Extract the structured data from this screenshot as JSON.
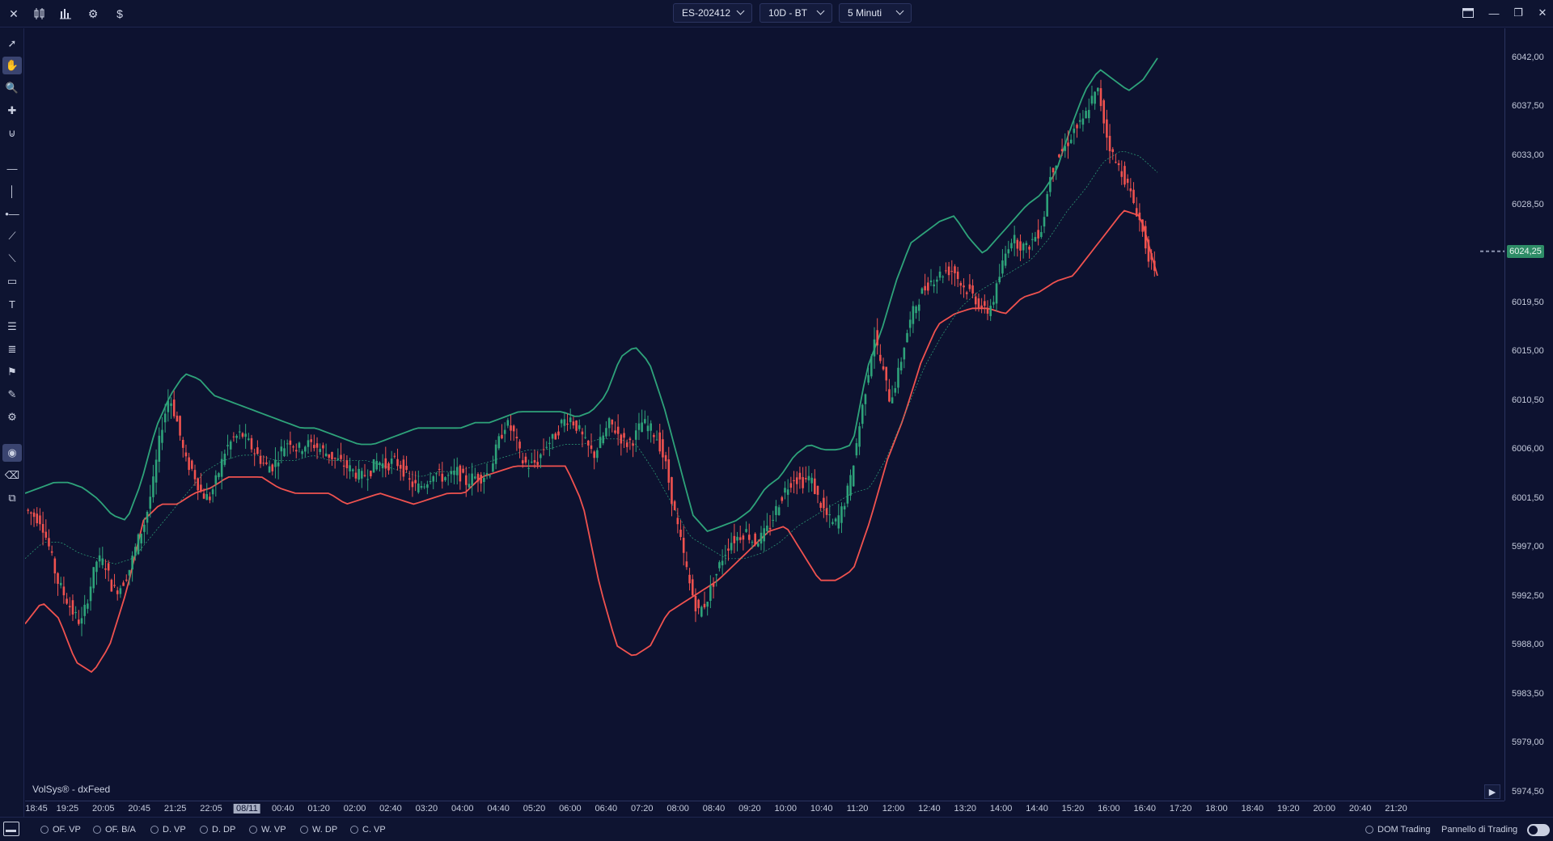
{
  "toolbar": {
    "icons": [
      "close-icon",
      "candles-compare-icon",
      "bar-chart-icon",
      "gear-icon",
      "dollar-icon"
    ],
    "symbol": "ES-202412",
    "range": "10D - BT",
    "timeframe": "5 Minuti"
  },
  "window_controls": [
    "layout-icon",
    "minimize-icon",
    "restore-icon",
    "close-icon"
  ],
  "left_tools": [
    "cursor",
    "hand",
    "zoom",
    "crosshair",
    "magnet",
    "horizontal-line",
    "vertical-line",
    "ray",
    "trend-line",
    "fib",
    "rectangle",
    "text",
    "list-lines",
    "list-lines-2",
    "flag",
    "note",
    "settings-tool",
    "eye",
    "eraser",
    "layer"
  ],
  "chart": {
    "source": "VolSys® - dxFeed",
    "price_labels": [
      "6042,00",
      "6037,50",
      "6033,00",
      "6028,50",
      "6019,50",
      "6015,00",
      "6010,50",
      "6006,00",
      "6001,50",
      "5997,00",
      "5992,50",
      "5988,00",
      "5983,50",
      "5979,00",
      "5974,50"
    ],
    "current_price": "6024,25",
    "time_labels": [
      "18:45",
      "19:25",
      "20:05",
      "20:45",
      "21:25",
      "22:05",
      "08/11",
      "00:40",
      "01:20",
      "02:00",
      "02:40",
      "03:20",
      "04:00",
      "04:40",
      "05:20",
      "06:00",
      "06:40",
      "07:20",
      "08:00",
      "08:40",
      "09:20",
      "10:00",
      "10:40",
      "11:20",
      "12:00",
      "12:40",
      "13:20",
      "14:00",
      "14:40",
      "15:20",
      "16:00",
      "16:40",
      "17:20",
      "18:00",
      "18:40",
      "19:20",
      "20:00",
      "20:40",
      "21:20"
    ],
    "highlighted_time": "08/11"
  },
  "chart_data": {
    "type": "candlestick",
    "ylim": [
      5974.5,
      6044.0
    ],
    "price_path": [
      6000.5,
      6000.0,
      5999.5,
      5997.0,
      5994.0,
      5992.5,
      5991.0,
      5990.0,
      5993.0,
      5996.0,
      5995.5,
      5993.0,
      5993.5,
      5995.0,
      5997.5,
      5999.5,
      6003.0,
      6008.0,
      6011.0,
      6008.5,
      6005.0,
      6004.0,
      6002.0,
      6001.5,
      6003.5,
      6006.0,
      6007.0,
      6007.5,
      6006.5,
      6005.5,
      6004.5,
      6004.5,
      6006.0,
      6007.0,
      6006.0,
      6006.5,
      6006.5,
      6006.0,
      6005.5,
      6005.0,
      6004.5,
      6004.0,
      6003.5,
      6004.0,
      6005.0,
      6004.5,
      6005.0,
      6004.5,
      6003.0,
      6002.5,
      6003.0,
      6004.0,
      6003.5,
      6003.5,
      6004.0,
      6003.0,
      6003.5,
      6003.5,
      6004.0,
      6006.5,
      6008.5,
      6007.5,
      6005.0,
      6004.5,
      6005.0,
      6006.5,
      6007.0,
      6008.5,
      6009.0,
      6008.0,
      6006.5,
      6005.5,
      6007.0,
      6008.5,
      6007.5,
      6006.5,
      6007.0,
      6008.5,
      6008.0,
      6007.0,
      6004.5,
      6000.5,
      5997.0,
      5993.5,
      5991.0,
      5992.0,
      5994.0,
      5996.0,
      5997.5,
      5998.0,
      5998.5,
      5997.5,
      5998.0,
      5999.0,
      6001.0,
      6002.5,
      6003.5,
      6003.0,
      6003.5,
      6001.5,
      6000.0,
      5999.0,
      6000.5,
      6003.0,
      6007.5,
      6012.0,
      6016.5,
      6013.5,
      6010.5,
      6013.0,
      6016.5,
      6019.0,
      6020.5,
      6021.5,
      6022.0,
      6022.5,
      6022.5,
      6021.0,
      6020.5,
      6019.5,
      6018.5,
      6020.0,
      6023.0,
      6025.5,
      6025.0,
      6024.5,
      6025.5,
      6026.5,
      6031.5,
      6033.0,
      6034.0,
      6035.5,
      6036.0,
      6038.0,
      6039.0,
      6035.0,
      6032.5,
      6031.5,
      6029.5,
      6027.5,
      6024.5,
      6022.0
    ],
    "upper_band_path": [
      6002,
      6002.5,
      6003,
      6003,
      6002.5,
      6001.5,
      6000,
      5999.5,
      6003,
      6008,
      6011,
      6013,
      6012.5,
      6011,
      6010.5,
      6010,
      6009.5,
      6009,
      6008.5,
      6008,
      6008,
      6007.5,
      6007,
      6006.5,
      6006.5,
      6007,
      6007.5,
      6008,
      6008,
      6008,
      6008,
      6008.5,
      6008.5,
      6009,
      6009.5,
      6009.5,
      6009.5,
      6009.5,
      6009,
      6009.5,
      6011,
      6014.5,
      6015.5,
      6014,
      6010,
      6005,
      6000,
      5998.5,
      5999,
      5999.5,
      6000.5,
      6002.5,
      6003.5,
      6005.5,
      6006.5,
      6006,
      6006,
      6006.5,
      6013.5,
      6017,
      6021.5,
      6025,
      6026,
      6027,
      6027.5,
      6025.5,
      6024,
      6025.5,
      6027,
      6028.5,
      6029.5,
      6031.5,
      6035.5,
      6039,
      6041,
      6040,
      6039,
      6040,
      6042
    ],
    "lower_band_path": [
      5990,
      5992,
      5990.5,
      5986.5,
      5985.5,
      5988,
      5993,
      5999.5,
      6001,
      6001,
      6002,
      6002.5,
      6003.5,
      6003.5,
      6003.5,
      6002.5,
      6002,
      6002,
      6002,
      6001,
      6001.5,
      6002,
      6001.5,
      6001,
      6001.5,
      6002,
      6002,
      6003.5,
      6004,
      6004.5,
      6004.5,
      6004.5,
      6004.5,
      6001,
      5993.5,
      5988,
      5987,
      5988,
      5991,
      5992,
      5993,
      5994,
      5995.5,
      5997,
      5998.5,
      5999,
      5996.5,
      5994,
      5994,
      5995,
      5999.5,
      6005,
      6009,
      6014,
      6017.5,
      6018.5,
      6019,
      6019,
      6018.5,
      6020,
      6020.5,
      6021.5,
      6022,
      6024,
      6026,
      6028,
      6027.5,
      6022
    ],
    "middle_band_path": [
      5996,
      5997.5,
      5997.5,
      5996.5,
      5996,
      5995.5,
      5996,
      5998,
      6000,
      6002,
      6004,
      6005,
      6005.5,
      6005.5,
      6005,
      6005,
      6005.5,
      6005,
      6005,
      6005,
      6004.5,
      6004,
      6003.5,
      6004,
      6004,
      6004.5,
      6005,
      6005.5,
      6006,
      6006,
      6006.5,
      6006.5,
      6007,
      6007,
      6006.5,
      6004,
      6001,
      5998,
      5997,
      5996,
      5996,
      5996.5,
      5997.5,
      5999,
      6000,
      6001,
      6002,
      6002.5,
      6005.5,
      6009.5,
      6013.5,
      6016.5,
      6019,
      6020.5,
      6021.5,
      6022.5,
      6023.5,
      6025.5,
      6028,
      6030,
      6032.5,
      6033.5,
      6033,
      6031.5
    ],
    "colors": {
      "up": "#2ea37a",
      "down": "#f0524f",
      "upper_band": "#2ea37a",
      "lower_band": "#f0524f",
      "middle_band": "#2ea37a",
      "background": "#0d1230"
    }
  },
  "bottombar": {
    "items": [
      "OF. VP",
      "OF. B/A",
      "D. VP",
      "D. DP",
      "W. VP",
      "W. DP",
      "C. VP"
    ],
    "dom": "DOM Trading",
    "panel": "Pannello di Trading"
  }
}
